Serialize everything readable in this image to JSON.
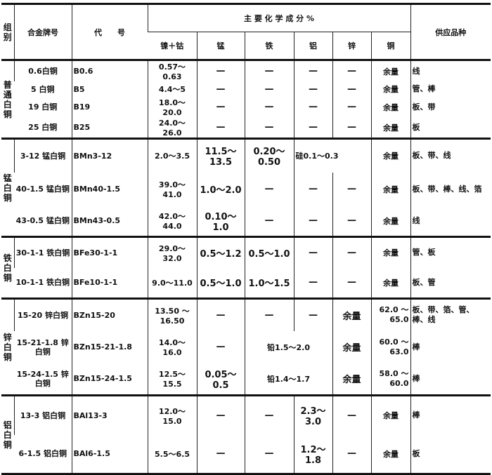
{
  "header": {
    "group": "组别",
    "alloy": "合金牌号",
    "code": "代　　号",
    "composition": "主 要 化 学 成 分 %",
    "supply": "供应品种",
    "elements": [
      "镍＋钴",
      "锰",
      "铁",
      "铝",
      "锌",
      "铜"
    ]
  },
  "groups": [
    {
      "name": "普通白铜",
      "rows": [
        {
          "alloy": "0.6白铜",
          "code": "B0.6",
          "ni": "0.57～0.63",
          "mn": "—",
          "fe": "—",
          "al": "—",
          "zn": "—",
          "cu": "余量",
          "supply": "线"
        },
        {
          "alloy": "5 白铜",
          "code": "B5",
          "ni": "4.4～5",
          "mn": "—",
          "fe": "—",
          "al": "—",
          "zn": "—",
          "cu": "余量",
          "supply": "管、棒"
        },
        {
          "alloy": "19 白铜",
          "code": "B19",
          "ni": "18.0～20.0",
          "mn": "—",
          "fe": "—",
          "al": "—",
          "zn": "—",
          "cu": "余量",
          "supply": "板、带"
        },
        {
          "alloy": "25 白铜",
          "code": "B25",
          "ni": "24.0～26.0",
          "mn": "—",
          "fe": "—",
          "al": "—",
          "zn": "—",
          "cu": "余量",
          "supply": "板"
        }
      ]
    },
    {
      "name": "锰白铜",
      "rows": [
        {
          "alloy": "3-12 锰白铜",
          "code": "BMn3-12",
          "ni": "2.0～3.5",
          "mn": "11.5～13.5",
          "fe": "0.20～0.50",
          "alzn": "硅0.1～0.3",
          "cu": "余量",
          "supply": "板、带、线"
        },
        {
          "alloy": "40-1.5 锰白铜",
          "code": "BMn40-1.5",
          "ni": "39.0～41.0",
          "mn": "1.0～2.0",
          "fe": "—",
          "al": "—",
          "zn": "—",
          "cu": "余量",
          "supply": "板、带、棒、线、箔"
        },
        {
          "alloy": "43-0.5 锰白铜",
          "code": "BMn43-0.5",
          "ni": "42.0～44.0",
          "mn": "0.10～1.0",
          "fe": "—",
          "al": "—",
          "zn": "—",
          "cu": "余量",
          "supply": "线"
        }
      ]
    },
    {
      "name": "铁白铜",
      "rows": [
        {
          "alloy": "30-1-1 铁白铜",
          "code": "BFe30-1-1",
          "ni": "29.0～32.0",
          "mn": "0.5～1.2",
          "fe": "0.5～1.0",
          "al": "—",
          "zn": "—",
          "cu": "余量",
          "supply": "管、板"
        },
        {
          "alloy": "10-1-1 铁白铜",
          "code": "BFe10-1-1",
          "ni": "9.0～11.0",
          "mn": "0.5～1.0",
          "fe": "1.0～1.5",
          "al": "—",
          "zn": "—",
          "cu": "余量",
          "supply": "板、管"
        }
      ]
    },
    {
      "name": "锌白铜",
      "rows": [
        {
          "alloy": "15-20 锌白铜",
          "code": "BZn15-20",
          "ni": "13.50 ～16.50",
          "mn": "—",
          "fe": "—",
          "al": "—",
          "zn": "余量",
          "cu": "62.0 ～65.0",
          "supply": "板、带、箔、管、棒、线"
        },
        {
          "alloy": "15-21-1.8 锌白铜",
          "code": "BZn15-21-1.8",
          "ni": "14.0～16.0",
          "mn": "—",
          "feal": "铅1.5～2.0",
          "zn": "余量",
          "cu": "60.0 ～63.0",
          "supply": "棒"
        },
        {
          "alloy": "15-24-1.5 锌白铜",
          "code": "BZn15-24-1.5",
          "ni": "12.5～15.5",
          "mn": "0.05～0.5",
          "feal": "铅1.4～1.7",
          "zn": "余量",
          "cu": "58.0 ～60.0",
          "supply": "棒"
        }
      ]
    },
    {
      "name": "铝白铜",
      "rows": [
        {
          "alloy": "13-3 铝白铜",
          "code": "BAl13-3",
          "ni": "12.0～15.0",
          "mn": "—",
          "fe": "—",
          "al": "2.3～3.0",
          "zn": "—",
          "cu": "余量",
          "supply": "棒"
        },
        {
          "alloy": "6-1.5 铝白铜",
          "code": "BAl6-1.5",
          "ni": "5.5～6.5",
          "mn": "—",
          "fe": "—",
          "al": "1.2～1.8",
          "zn": "—",
          "cu": "余量",
          "supply": "板"
        }
      ]
    }
  ]
}
